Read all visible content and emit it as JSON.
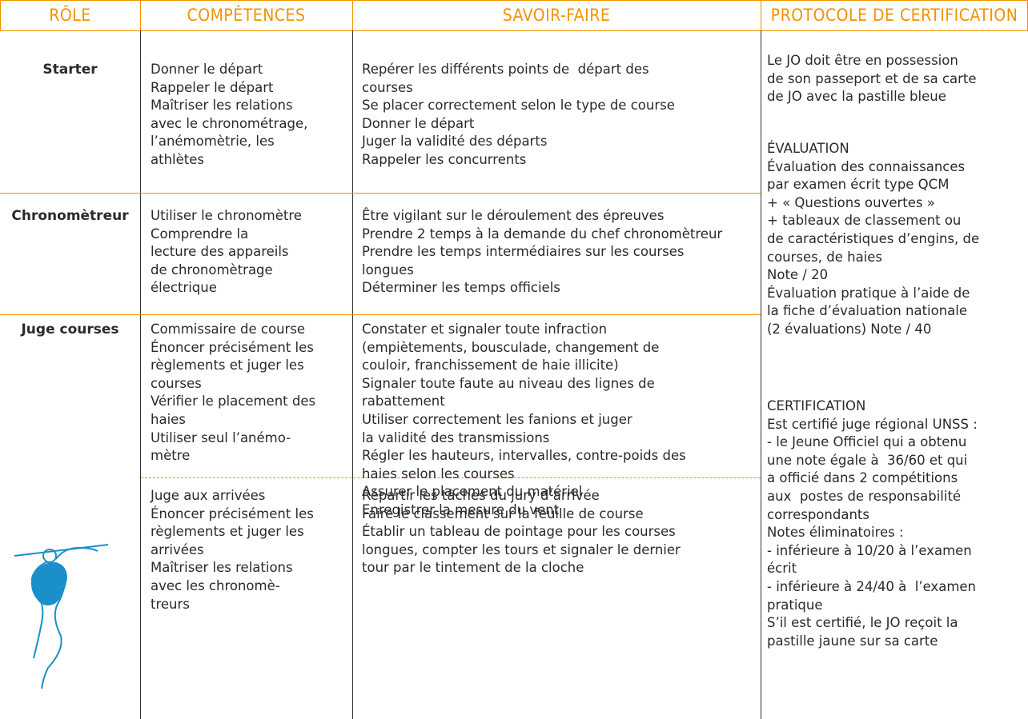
{
  "header": {
    "columns": [
      "RÔLE",
      "COMPÉTENCES",
      "SAVOIR-FAIRE",
      "PROTOCOLE DE CERTIFICATION"
    ]
  },
  "rows": [
    {
      "role": "Starter",
      "competences": [
        "Donner le départ",
        "Rappeler le départ",
        "Maîtriser les relations",
        "avec le chronométrage,",
        "l’anémomètrie, les",
        "athlètes"
      ],
      "savoir_faire": [
        "Repérer les différents points de  départ des",
        "courses",
        "Se placer correctement selon le type de course",
        "Donner le départ",
        "Juger la validité des départs",
        "Rappeler les concurrents"
      ]
    },
    {
      "role": "Chronomètreur",
      "competences": [
        "Utiliser le chronomètre",
        "Comprendre la",
        "lecture des appareils",
        "de chronomètrage",
        "électrique"
      ],
      "savoir_faire": [
        "Être vigilant sur le déroulement des épreuves",
        "Prendre 2 temps à la demande du chef chronomètreur",
        "Prendre les temps intermédiaires sur les courses",
        "longues",
        "Déterminer les temps officiels"
      ]
    },
    {
      "role": "Juge courses",
      "competences": [
        "Commissaire de course",
        "Énoncer précisément les",
        "règlements et juger les",
        "courses",
        "Vérifier le placement des",
        "haies",
        "Utiliser seul l’anémo-",
        "mètre"
      ],
      "savoir_faire": [
        "Constater et signaler toute infraction",
        "(empiètements, bousculade, changement de",
        "couloir, franchissement de haie illicite)",
        "Signaler toute faute au niveau des lignes de",
        "rabattement",
        "Utiliser correctement les fanions et juger",
        "la validité des transmissions",
        "Régler les hauteurs, intervalles, contre-poids des",
        "haies selon les courses",
        "Assurer le placement du matériel",
        "Enregistrer la mesure du vent"
      ]
    },
    {
      "competences": [
        "Juge aux arrivées",
        "Énoncer précisément les",
        "règlements et juger les",
        "arrivées",
        "Maîtriser les relations",
        "avec les chronomè-",
        "treurs"
      ],
      "savoir_faire": [
        "Répartir les tâches du jury d’arrivée",
        "Faire le classement sur la feuille de course",
        "Établir un tableau de pointage pour les courses",
        "longues, compter les tours et signaler le dernier",
        "tour par le tintement de la cloche"
      ]
    }
  ],
  "protocol": {
    "paragraphs": [
      [
        "Le JO doit être en possession",
        "de son passeport et de sa carte",
        "de JO avec la pastille bleue"
      ],
      [
        "ÉVALUATION",
        "Évaluation des connaissances",
        "par examen écrit type QCM",
        "+ « Questions ouvertes »",
        "+ tableaux de classement ou",
        "de caractéristiques d’engins, de",
        "courses, de haies",
        "Note / 20",
        "Évaluation pratique à l’aide de",
        "la fiche d’évaluation nationale",
        "(2 évaluations) Note / 40"
      ],
      [
        "CERTIFICATION",
        "Est certifié juge régional UNSS :",
        "- le Jeune Officiel qui a obtenu",
        "une note égale à  36/60 et qui",
        "a officié dans 2 compétitions",
        "aux  postes de responsabilité",
        "correspondants",
        "Notes éliminatoires :",
        "- inférieure à 10/20 à l’examen",
        "écrit",
        "- inférieure à 24/40 à  l’examen",
        "pratique",
        "S’il est certifié, le JO reçoit la",
        "pastille jaune sur sa carte"
      ]
    ]
  }
}
